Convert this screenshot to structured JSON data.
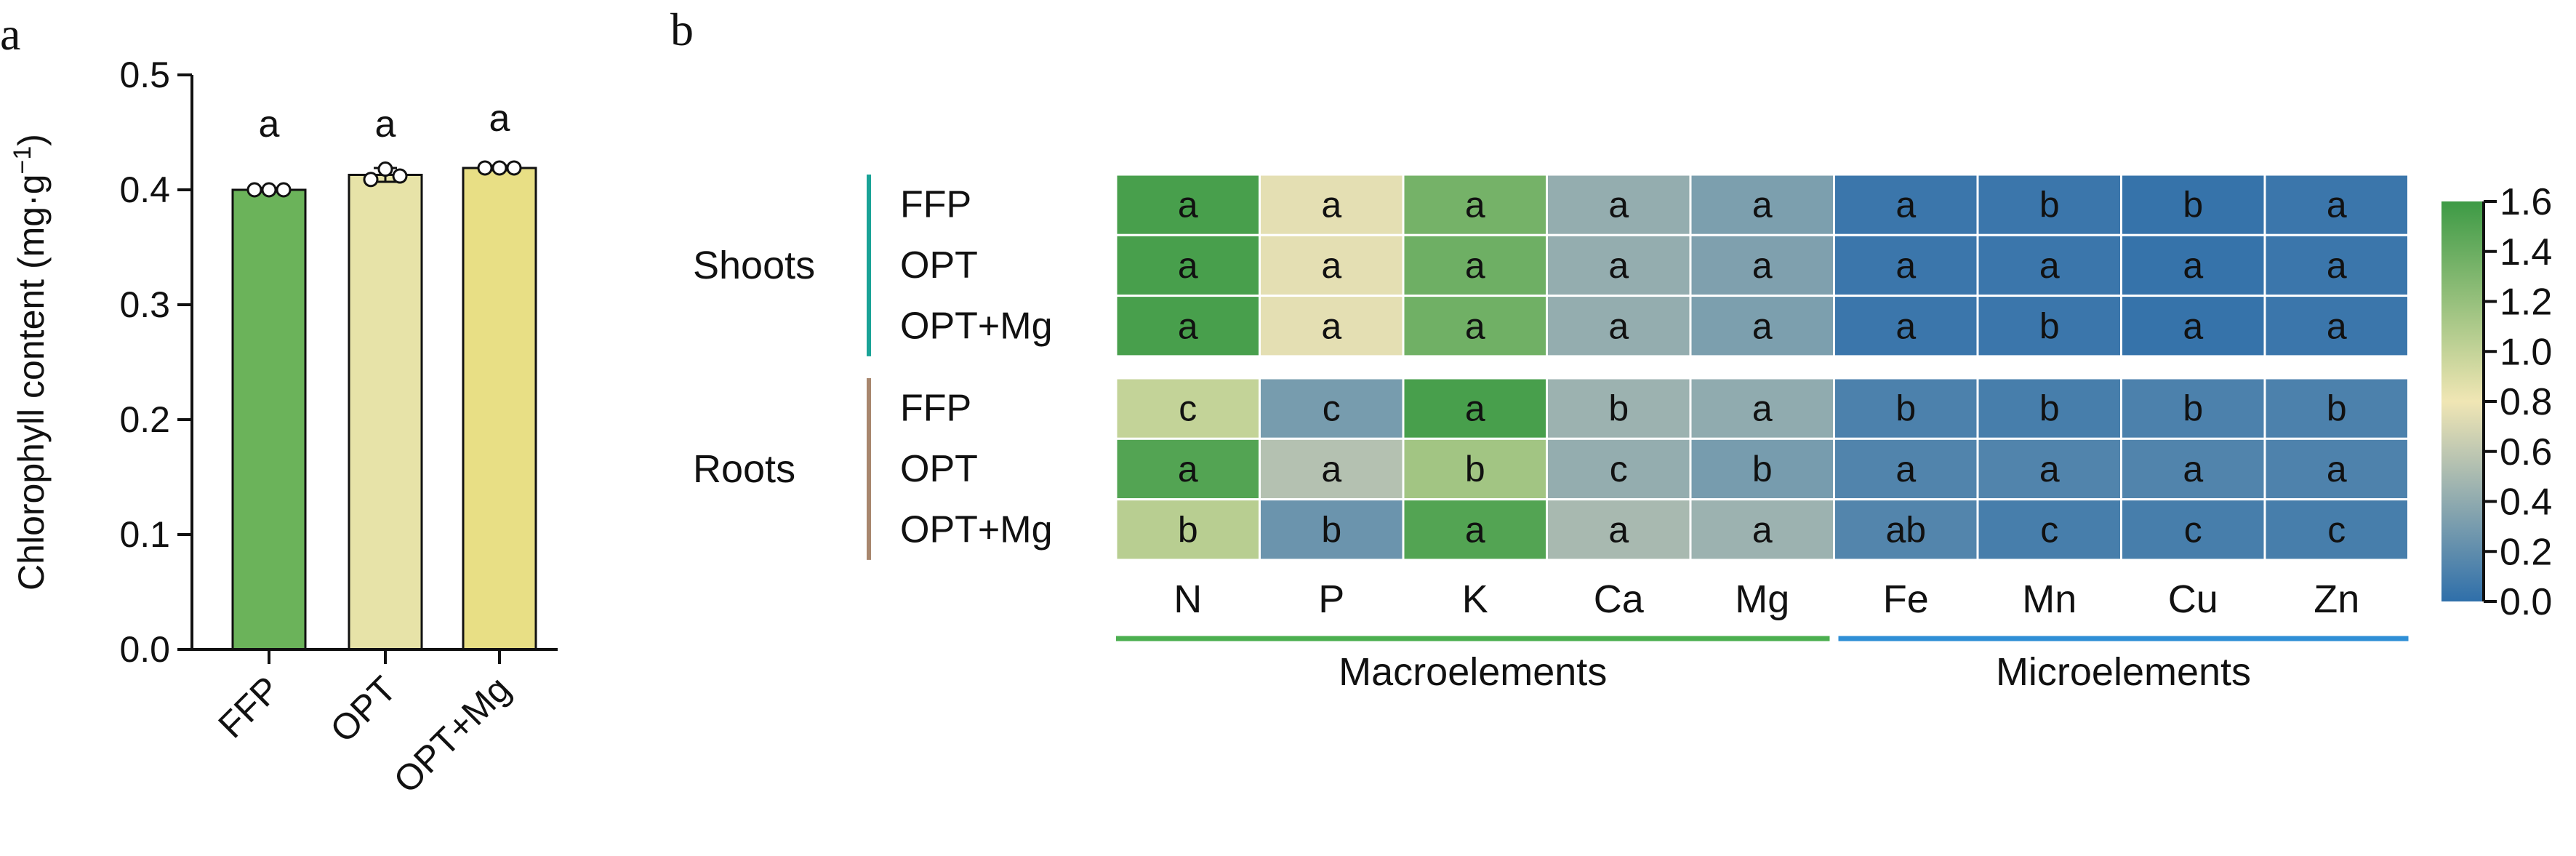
{
  "panels": {
    "a": "a",
    "b": "b"
  },
  "colors": {
    "ffp_bar": "#6bb35a",
    "opt_bar": "#e7e3a8",
    "optmg_bar": "#e8df85",
    "shoots_bracket": "#1aa397",
    "roots_bracket": "#a8876e",
    "macro_line": "#4caf50",
    "micro_line": "#2f8fd6",
    "heat_low": "#2f6faa",
    "heat_mid": "#f0e6b4",
    "heat_high": "#3d9a45"
  },
  "chart_data": [
    {
      "type": "bar",
      "categories": [
        "FFP",
        "OPT",
        "OPT+Mg"
      ],
      "values": [
        0.4,
        0.413,
        0.419
      ],
      "errors": [
        0.0015,
        0.006,
        0.002
      ],
      "points": [
        [
          0.4,
          0.4,
          0.4
        ],
        [
          0.409,
          0.418,
          0.412
        ],
        [
          0.419,
          0.419,
          0.419
        ]
      ],
      "letters": [
        "a",
        "a",
        "a"
      ],
      "ylabel_main": "Chlorophyll content (mg·g",
      "ylabel_sup": "−1",
      "ylabel_close": ")",
      "ylim": [
        0,
        0.5
      ],
      "yticks": [
        0.0,
        0.1,
        0.2,
        0.3,
        0.4,
        0.5
      ],
      "ytick_labels": [
        "0.0",
        "0.1",
        "0.2",
        "0.3",
        "0.4",
        "0.5"
      ],
      "grid": false
    },
    {
      "type": "heatmap",
      "columns": [
        "N",
        "P",
        "K",
        "Ca",
        "Mg",
        "Fe",
        "Mn",
        "Cu",
        "Zn"
      ],
      "groups": [
        {
          "name": "Shoots",
          "rows": [
            "FFP",
            "OPT",
            "OPT+Mg"
          ],
          "values": [
            [
              1.55,
              0.75,
              1.35,
              0.42,
              0.32,
              0.05,
              0.05,
              0.03,
              0.05
            ],
            [
              1.55,
              0.75,
              1.38,
              0.42,
              0.33,
              0.05,
              0.05,
              0.03,
              0.05
            ],
            [
              1.55,
              0.75,
              1.37,
              0.42,
              0.32,
              0.05,
              0.05,
              0.03,
              0.05
            ]
          ],
          "letters": [
            [
              "a",
              "a",
              "a",
              "a",
              "a",
              "a",
              "b",
              "b",
              "a"
            ],
            [
              "a",
              "a",
              "a",
              "a",
              "a",
              "a",
              "a",
              "a",
              "a"
            ],
            [
              "a",
              "a",
              "a",
              "a",
              "a",
              "a",
              "b",
              "a",
              "a"
            ]
          ]
        },
        {
          "name": "Roots",
          "rows": [
            "FFP",
            "OPT",
            "OPT+Mg"
          ],
          "values": [
            [
              1.0,
              0.3,
              1.55,
              0.45,
              0.4,
              0.12,
              0.1,
              0.12,
              0.12
            ],
            [
              1.5,
              0.55,
              1.15,
              0.42,
              0.3,
              0.14,
              0.14,
              0.14,
              0.13
            ],
            [
              1.05,
              0.25,
              1.5,
              0.5,
              0.45,
              0.15,
              0.1,
              0.1,
              0.1
            ]
          ],
          "letters": [
            [
              "c",
              "c",
              "a",
              "b",
              "a",
              "b",
              "b",
              "b",
              "b"
            ],
            [
              "a",
              "a",
              "b",
              "c",
              "b",
              "a",
              "a",
              "a",
              "a"
            ],
            [
              "b",
              "b",
              "a",
              "a",
              "a",
              "ab",
              "c",
              "c",
              "c"
            ]
          ]
        }
      ],
      "categories": [
        {
          "label": "Macroelements",
          "from": "N",
          "to": "Mg"
        },
        {
          "label": "Microelements",
          "from": "Fe",
          "to": "Zn"
        }
      ],
      "colorbar": {
        "range": [
          0.0,
          1.6
        ],
        "ticks": [
          0.0,
          0.2,
          0.4,
          0.6,
          0.8,
          1.0,
          1.2,
          1.4,
          1.6
        ],
        "tick_labels": [
          "0.0",
          "0.2",
          "0.4",
          "0.6",
          "0.8",
          "1.0",
          "1.2",
          "1.4",
          "1.6"
        ]
      }
    }
  ]
}
